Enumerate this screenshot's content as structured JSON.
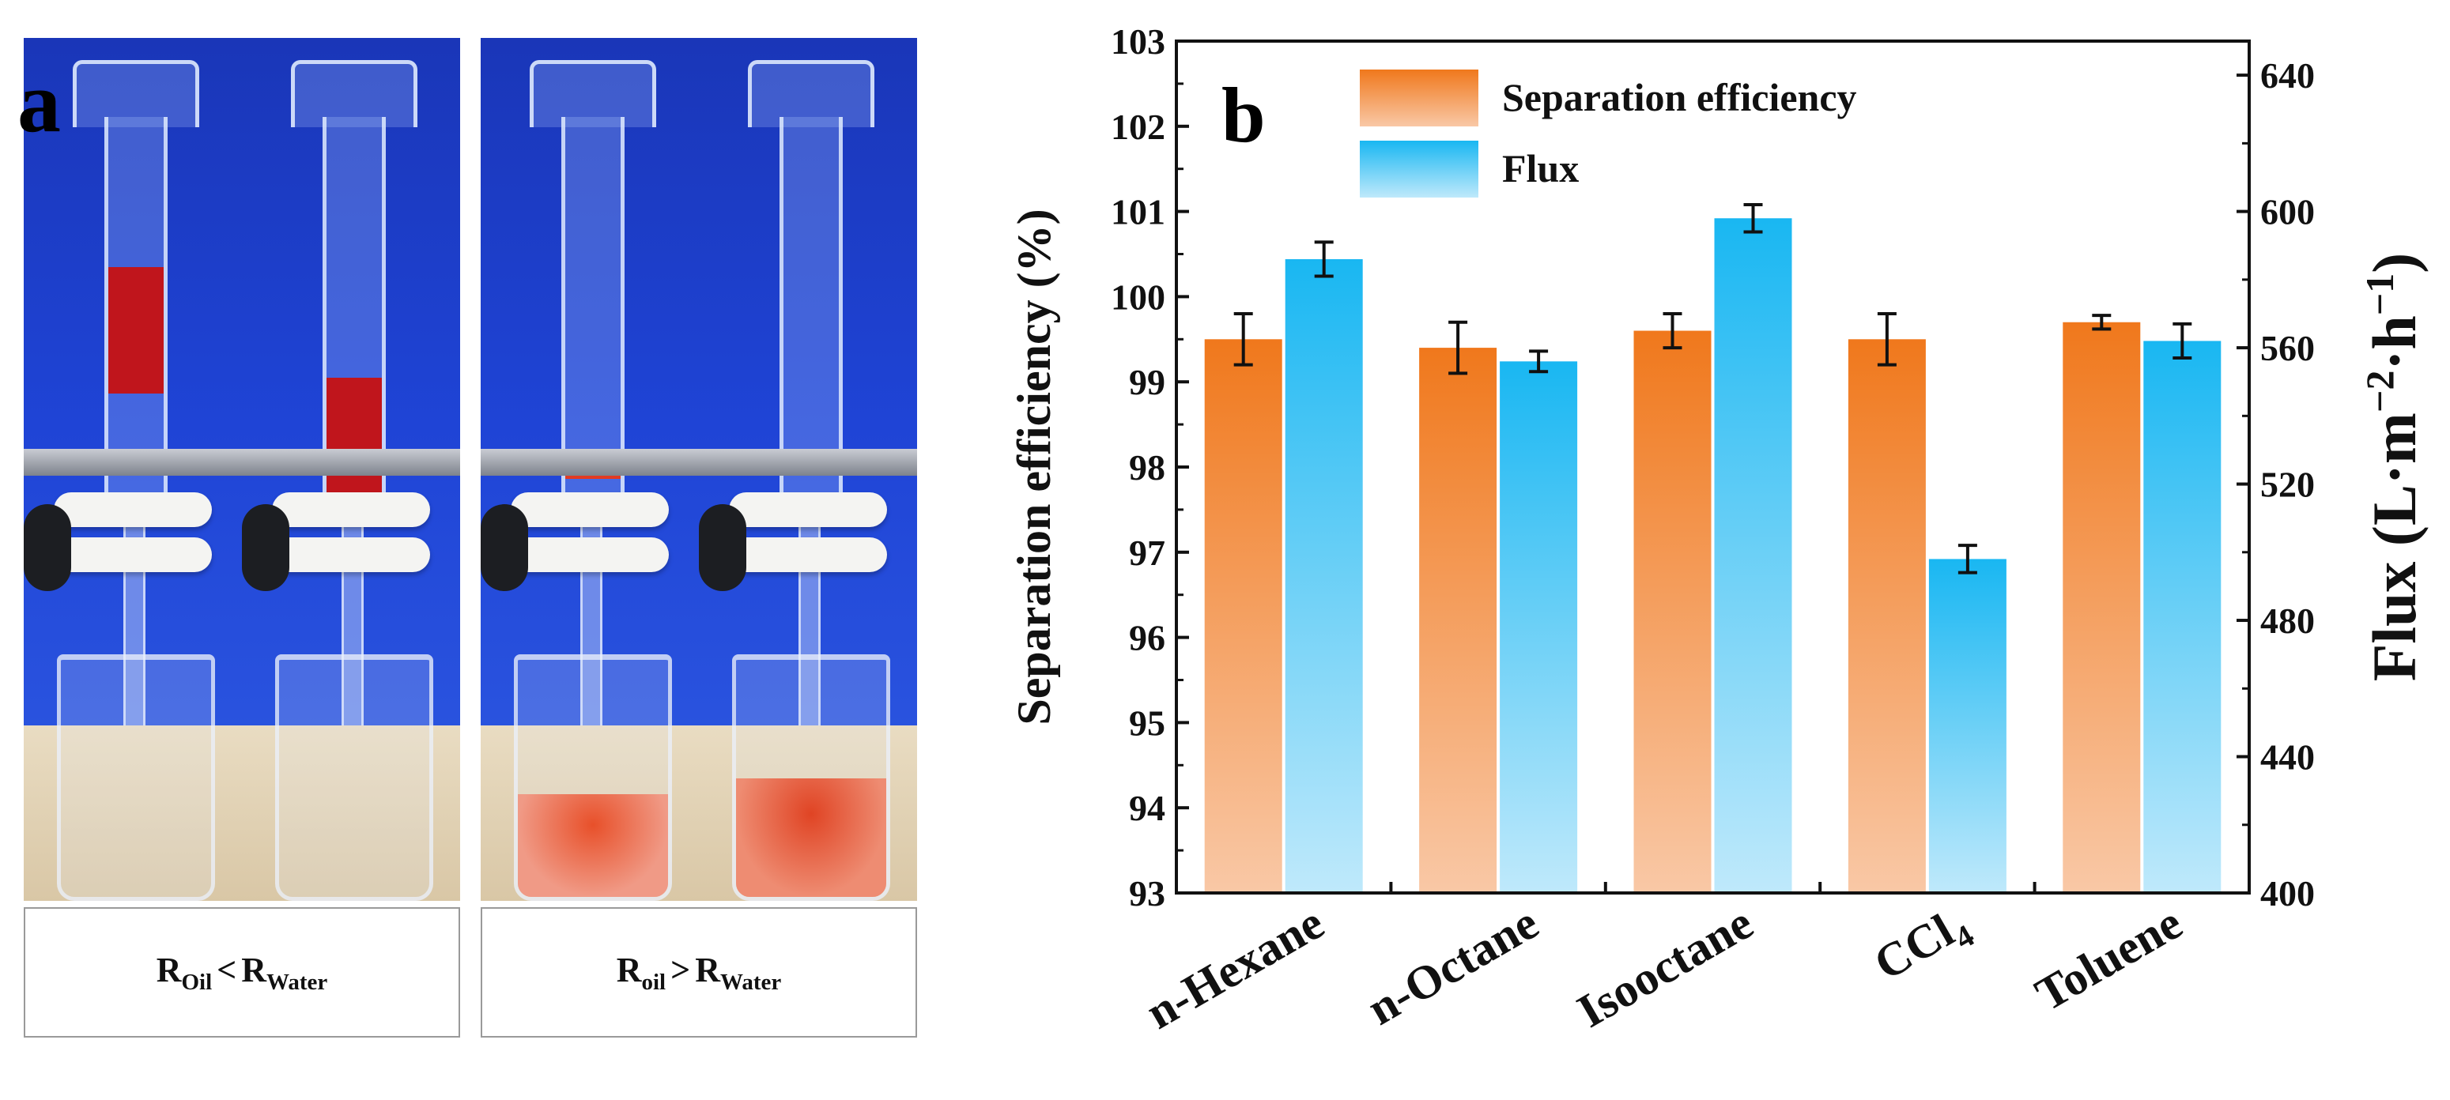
{
  "panel_a": {
    "letter": "a",
    "caption_left": {
      "r1": "R",
      "s1": "Oil",
      "op": "<",
      "r2": "R",
      "s2": "Water"
    },
    "caption_right": {
      "r1": "R",
      "s1": "oil",
      "op": ">",
      "r2": "R",
      "s2": "Water"
    }
  },
  "panel_b": {
    "letter": "b"
  },
  "colors": {
    "efficiency_top": "#f0781c",
    "efficiency_bottom": "#f9c8a6",
    "flux_top": "#19b7f2",
    "flux_bottom": "#bfe9fb",
    "oil_red": "#c0151c",
    "water_orange": "#e8502a"
  },
  "chart_data": {
    "type": "bar",
    "categories": [
      "n-Hexane",
      "n-Octane",
      "Isooctane",
      "CCl4",
      "Toluene"
    ],
    "category_display": [
      {
        "main": "n-Hexane",
        "sub": ""
      },
      {
        "main": "n-Octane",
        "sub": ""
      },
      {
        "main": "Isooctane",
        "sub": ""
      },
      {
        "main": "CCl",
        "sub": "4"
      },
      {
        "main": "Toluene",
        "sub": ""
      }
    ],
    "series": [
      {
        "name": "Separation efficiency",
        "axis": "left",
        "values": [
          99.5,
          99.4,
          99.6,
          99.5,
          99.7
        ],
        "errors": [
          0.3,
          0.3,
          0.2,
          0.3,
          0.08
        ]
      },
      {
        "name": "Flux",
        "axis": "right",
        "values": [
          586,
          556,
          598,
          498,
          562
        ],
        "errors": [
          5,
          3,
          4,
          4,
          5
        ]
      }
    ],
    "y_left": {
      "label": "Separation efficiency (%)",
      "lim": [
        93,
        103
      ],
      "ticks": [
        93,
        94,
        95,
        96,
        97,
        98,
        99,
        100,
        101,
        102,
        103
      ]
    },
    "y_right": {
      "label_main": "Flux (L·m",
      "label_sup1": "−2",
      "label_mid": "·h",
      "label_sup2": "−1",
      "label_end": ")",
      "lim": [
        400,
        650
      ],
      "ticks": [
        400,
        440,
        480,
        520,
        560,
        600,
        640
      ]
    },
    "legend_position": "top-center"
  }
}
